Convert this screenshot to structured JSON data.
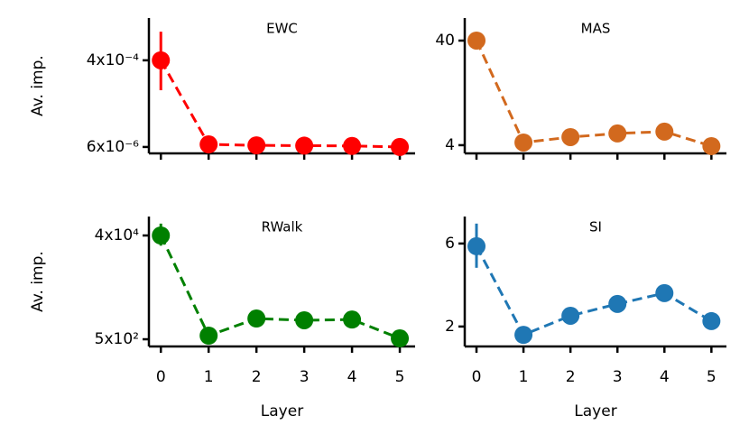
{
  "chart_data": [
    {
      "type": "line",
      "title": "EWC",
      "ylabel": "Av. imp.",
      "log_y": true,
      "show_xticklabels": false,
      "x": [
        0,
        1,
        2,
        3,
        4,
        5
      ],
      "xlim": [
        -0.25,
        5.32
      ],
      "xticks": [
        0,
        1,
        2,
        3,
        4,
        5
      ],
      "ylim": [
        4.4e-06,
        0.0031
      ],
      "yticks": [
        {
          "value": 6e-06,
          "label": "6x10⁻⁶"
        },
        {
          "value": 0.0004,
          "label": "4x10⁻⁴"
        }
      ],
      "series": [
        {
          "name": "EWC",
          "color": "#ff0000",
          "values": [
            0.0004,
            6.8e-06,
            6.5e-06,
            6.4e-06,
            6.3e-06,
            6e-06
          ],
          "err_low": [
            9.4e-05,
            null,
            null,
            null,
            null,
            null
          ],
          "err_high": [
            0.0016,
            null,
            null,
            null,
            null,
            null
          ]
        }
      ]
    },
    {
      "type": "line",
      "title": "MAS",
      "log_y": true,
      "show_xticklabels": false,
      "x": [
        0,
        1,
        2,
        3,
        4,
        5
      ],
      "xlim": [
        -0.25,
        5.32
      ],
      "xticks": [
        0,
        1,
        2,
        3,
        4,
        5
      ],
      "ylim": [
        3.34,
        65.7
      ],
      "yticks": [
        4,
        40
      ],
      "series": [
        {
          "name": "MAS",
          "color": "#d2691e",
          "values": [
            40,
            4.24,
            4.78,
            5.18,
            5.39,
            3.92
          ],
          "err_low": [
            null,
            null,
            null,
            null,
            null,
            null
          ],
          "err_high": [
            null,
            null,
            null,
            null,
            null,
            null
          ]
        }
      ]
    },
    {
      "type": "line",
      "title": "RWalk",
      "ylabel": "Av. imp.",
      "xlabel": "Layer",
      "log_y": true,
      "show_xticklabels": true,
      "x": [
        0,
        1,
        2,
        3,
        4,
        5
      ],
      "xlim": [
        -0.25,
        5.32
      ],
      "xticks": [
        0,
        1,
        2,
        3,
        4,
        5
      ],
      "ylim": [
        369,
        89000
      ],
      "yticks": [
        {
          "value": 500,
          "label": "5x10²"
        },
        {
          "value": 40000,
          "label": "4x10⁴"
        }
      ],
      "series": [
        {
          "name": "RWalk",
          "color": "#008000",
          "values": [
            40000,
            583,
            1200,
            1115,
            1150,
            519
          ],
          "err_low": [
            26000,
            null,
            null,
            null,
            null,
            null
          ],
          "err_high": [
            66000,
            null,
            null,
            null,
            null,
            null
          ]
        }
      ]
    },
    {
      "type": "line",
      "title": "SI",
      "xlabel": "Layer",
      "log_y": false,
      "show_xticklabels": true,
      "x": [
        0,
        1,
        2,
        3,
        4,
        5
      ],
      "xlim": [
        -0.25,
        5.32
      ],
      "xticks": [
        0,
        1,
        2,
        3,
        4,
        5
      ],
      "ylim": [
        1.04,
        7.3
      ],
      "yticks": [
        2,
        6
      ],
      "series": [
        {
          "name": "SI",
          "color": "#1f77b4",
          "values": [
            5.87,
            1.6,
            2.52,
            3.09,
            3.61,
            2.26
          ],
          "err_low": [
            4.83,
            null,
            null,
            null,
            null,
            null
          ],
          "err_high": [
            6.96,
            null,
            null,
            null,
            null,
            null
          ]
        }
      ]
    }
  ]
}
